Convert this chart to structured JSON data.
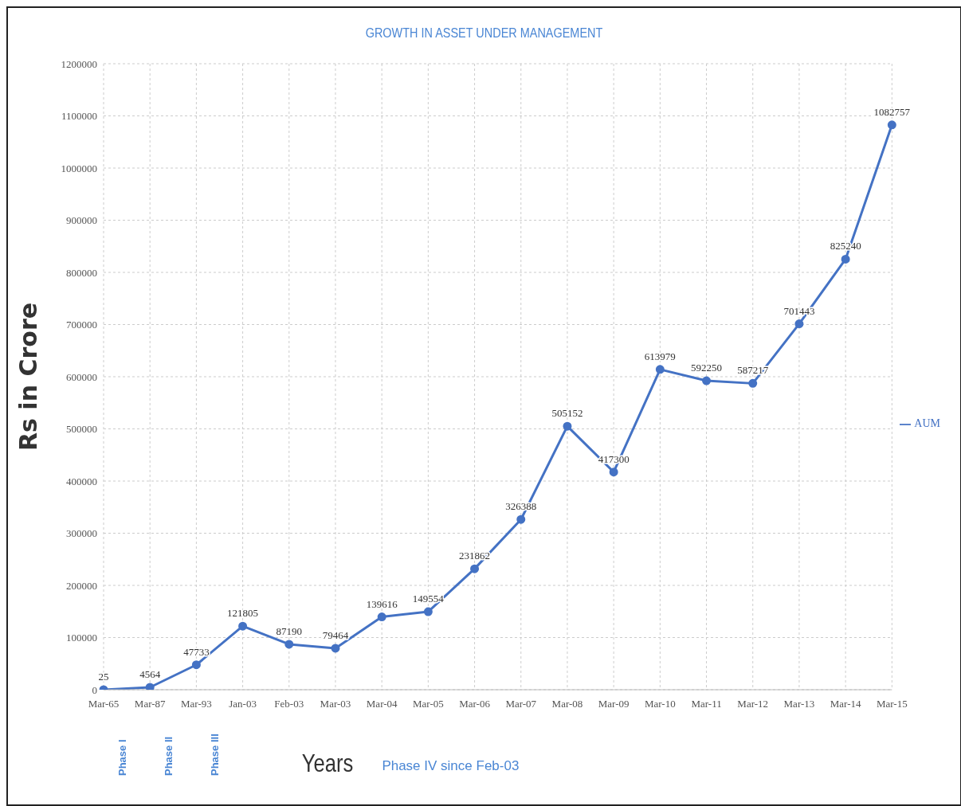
{
  "chart_data": {
    "type": "line",
    "title": "GROWTH IN ASSET UNDER MANAGEMENT",
    "xlabel": "Years",
    "ylabel": "Rs in Crore",
    "categories": [
      "Mar-65",
      "Mar-87",
      "Mar-93",
      "Jan-03",
      "Feb-03",
      "Mar-03",
      "Mar-04",
      "Mar-05",
      "Mar-06",
      "Mar-07",
      "Mar-08",
      "Mar-09",
      "Mar-10",
      "Mar-11",
      "Mar-12",
      "Mar-13",
      "Mar-14",
      "Mar-15"
    ],
    "series": [
      {
        "name": "AUM",
        "color": "#4472c4",
        "values": [
          25,
          4564,
          47733,
          121805,
          87190,
          79464,
          139616,
          149554,
          231862,
          326388,
          505152,
          417300,
          613979,
          592250,
          587217,
          701443,
          825240,
          1082757
        ]
      }
    ],
    "ylim": [
      0,
      1200000
    ],
    "yticks": [
      0,
      100000,
      200000,
      300000,
      400000,
      500000,
      600000,
      700000,
      800000,
      900000,
      1000000,
      1100000,
      1200000
    ],
    "annotations": [
      "Phase I",
      "Phase II",
      "Phase III",
      "Phase IV since Feb-03"
    ],
    "grid": true,
    "legend": "right",
    "marker": "circle",
    "line_style": "solid",
    "data_labels": true
  }
}
